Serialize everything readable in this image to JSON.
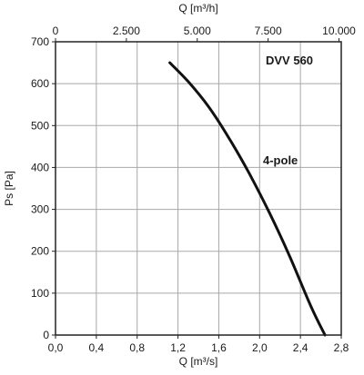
{
  "chart_data": {
    "type": "line",
    "model_label": "DVV 560",
    "series": [
      {
        "name": "4-pole",
        "x": [
          1.12,
          1.3,
          1.5,
          1.7,
          1.9,
          2.1,
          2.3,
          2.5,
          2.64
        ],
        "y": [
          650,
          605,
          545,
          470,
          385,
          290,
          185,
          70,
          0
        ]
      }
    ],
    "x_bottom": {
      "label": "Q [m³/s]",
      "range": [
        0,
        2.8
      ],
      "ticks": [
        0,
        0.4,
        0.8,
        1.2,
        1.6,
        2.0,
        2.4,
        2.8
      ],
      "tick_labels": [
        "0,0",
        "0,4",
        "0,8",
        "1,2",
        "1,6",
        "2,0",
        "2,4",
        "2,8"
      ]
    },
    "x_top": {
      "label": "Q [m³/h]",
      "range": [
        0,
        10080
      ],
      "ticks": [
        0,
        2500,
        5000,
        7500,
        10000
      ],
      "tick_labels": [
        "0",
        "2.500",
        "5.000",
        "7.500",
        "10.000"
      ]
    },
    "y": {
      "label": "Ps [Pa]",
      "range": [
        0,
        700
      ],
      "ticks": [
        0,
        100,
        200,
        300,
        400,
        500,
        600,
        700
      ],
      "tick_labels": [
        "0",
        "100",
        "200",
        "300",
        "400",
        "500",
        "600",
        "700"
      ]
    },
    "grid": true,
    "colors": {
      "grid": "#a8a8a8",
      "frame": "#222222",
      "curve": "#111111"
    }
  }
}
